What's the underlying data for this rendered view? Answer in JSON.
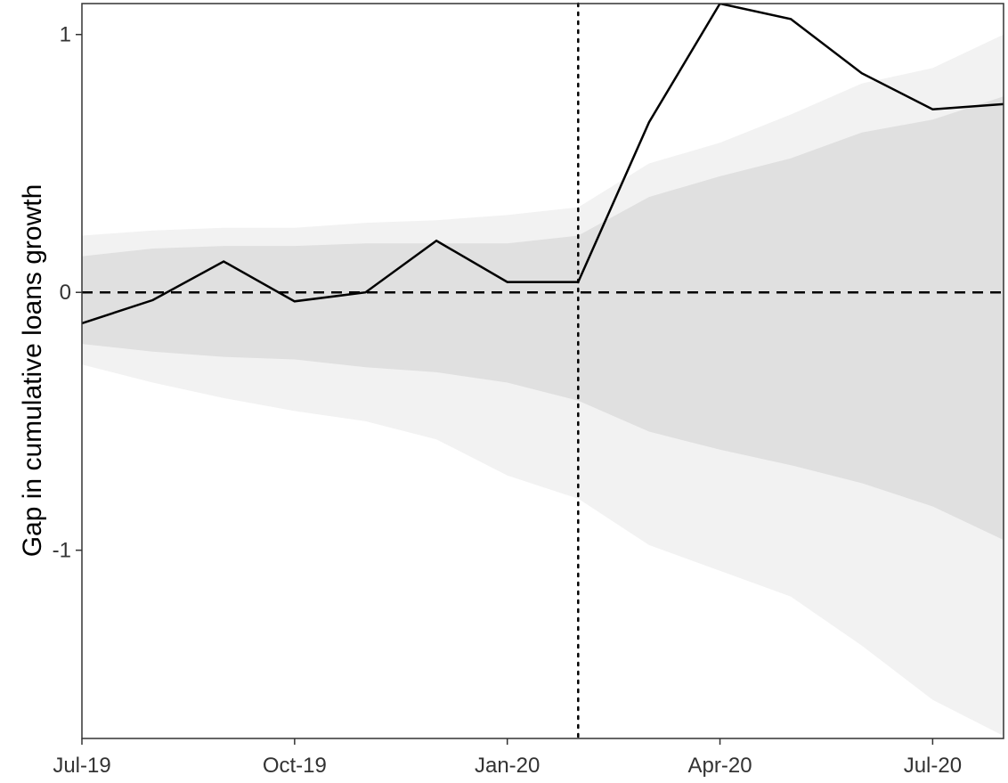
{
  "chart_data": {
    "type": "line",
    "ylabel": "Gap in cumulative loans growth",
    "xlabel": "",
    "x": [
      "2019-07",
      "2019-08",
      "2019-09",
      "2019-10",
      "2019-11",
      "2019-12",
      "2020-01",
      "2020-02",
      "2020-03",
      "2020-04",
      "2020-05",
      "2020-06",
      "2020-07",
      "2020-08"
    ],
    "x_ticks": [
      {
        "x": "2019-07",
        "label": "Jul-19"
      },
      {
        "x": "2019-10",
        "label": "Oct-19"
      },
      {
        "x": "2020-01",
        "label": "Jan-20"
      },
      {
        "x": "2020-04",
        "label": "Apr-20"
      },
      {
        "x": "2020-07",
        "label": "Jul-20"
      }
    ],
    "y_ticks": [
      {
        "y": 1,
        "label": "1"
      },
      {
        "y": 0,
        "label": "0"
      },
      {
        "y": -1,
        "label": "-1"
      }
    ],
    "ylim": [
      -1.73,
      1.12
    ],
    "series": [
      {
        "values": [
          -0.12,
          -0.03,
          0.12,
          -0.035,
          0.0,
          0.2,
          0.04,
          0.04,
          0.66,
          1.12,
          1.06,
          0.85,
          0.71,
          0.73
        ],
        "color": "#000000"
      }
    ],
    "bands": [
      {
        "level": "outer",
        "color": "#f2f2f2",
        "upper": [
          0.22,
          0.24,
          0.25,
          0.25,
          0.27,
          0.28,
          0.3,
          0.33,
          0.5,
          0.58,
          0.69,
          0.81,
          0.87,
          1.0
        ],
        "lower": [
          -0.28,
          -0.35,
          -0.41,
          -0.46,
          -0.5,
          -0.57,
          -0.71,
          -0.8,
          -0.98,
          -1.08,
          -1.18,
          -1.37,
          -1.58,
          -1.72
        ]
      },
      {
        "level": "inner",
        "color": "#e0e0e0",
        "upper": [
          0.14,
          0.17,
          0.18,
          0.18,
          0.19,
          0.19,
          0.19,
          0.22,
          0.37,
          0.45,
          0.52,
          0.62,
          0.67,
          0.76
        ],
        "lower": [
          -0.2,
          -0.23,
          -0.25,
          -0.26,
          -0.29,
          -0.31,
          -0.35,
          -0.42,
          -0.54,
          -0.61,
          -0.67,
          -0.74,
          -0.83,
          -0.96
        ]
      }
    ],
    "reference_lines": [
      {
        "orientation": "horizontal",
        "y": 0,
        "style": "dashed"
      },
      {
        "orientation": "vertical",
        "x": "2020-02",
        "style": "dotted"
      }
    ],
    "grid": false,
    "legend": "none"
  }
}
